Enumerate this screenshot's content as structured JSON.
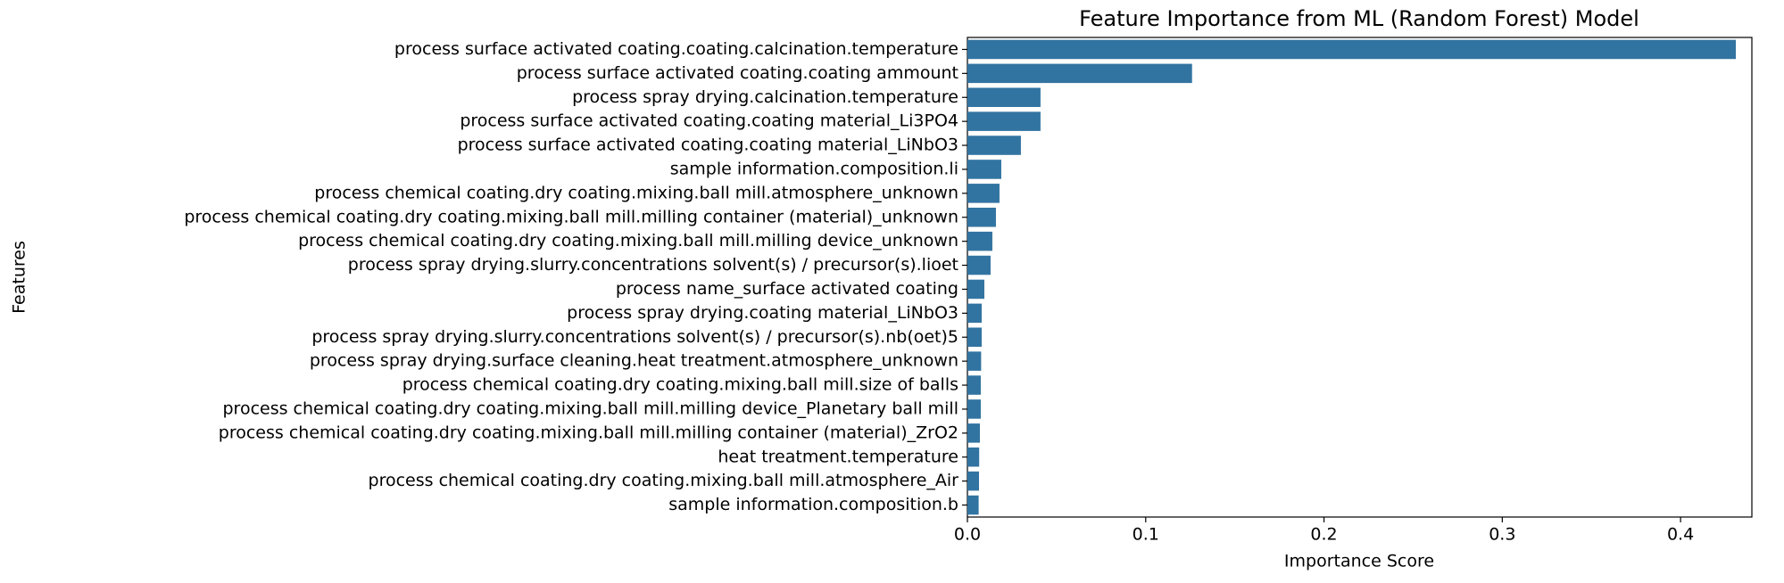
{
  "chart_data": {
    "type": "barh",
    "title": "Feature Importance from ML (Random Forest) Model",
    "xlabel": "Importance Score",
    "ylabel": "Features",
    "categories": [
      "process surface activated coating.coating.calcination.temperature",
      "process surface activated coating.coating ammount",
      "process spray drying.calcination.temperature",
      "process surface activated coating.coating material_Li3PO4",
      "process surface activated coating.coating material_LiNbO3",
      "sample information.composition.li",
      "process chemical coating.dry coating.mixing.ball mill.atmosphere_unknown",
      "process chemical coating.dry coating.mixing.ball mill.milling container (material)_unknown",
      "process chemical coating.dry coating.mixing.ball mill.milling device_unknown",
      "process spray drying.slurry.concentrations solvent(s) / precursor(s).lioet",
      "process name_surface activated coating",
      "process spray drying.coating material_LiNbO3",
      "process spray drying.slurry.concentrations solvent(s) / precursor(s).nb(oet)5",
      "process spray drying.surface cleaning.heat treatment.atmosphere_unknown",
      "process chemical coating.dry coating.mixing.ball mill.size of balls",
      "process chemical coating.dry coating.mixing.ball mill.milling device_Planetary ball mill",
      "process chemical coating.dry coating.mixing.ball mill.milling container (material)_ZrO2",
      "heat treatment.temperature",
      "process chemical coating.dry coating.mixing.ball mill.atmosphere_Air",
      "sample information.composition.b"
    ],
    "values": [
      0.431,
      0.126,
      0.041,
      0.041,
      0.03,
      0.019,
      0.018,
      0.016,
      0.014,
      0.013,
      0.0095,
      0.008,
      0.008,
      0.0077,
      0.0075,
      0.0075,
      0.007,
      0.0066,
      0.0065,
      0.0063
    ],
    "color": "#3274a1",
    "xlim": [
      0,
      0.44
    ],
    "xticks": [
      {
        "value": 0,
        "label": "0.0"
      },
      0.1,
      0.2,
      0.3,
      0.4
    ]
  }
}
